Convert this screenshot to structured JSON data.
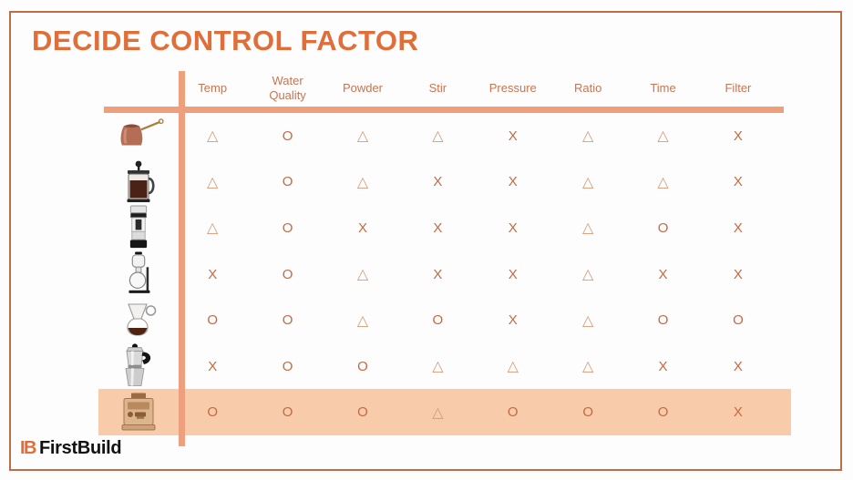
{
  "slide": {
    "title": "DECIDE CONTROL FACTOR"
  },
  "table": {
    "columns": [
      "Temp",
      "Water Quality",
      "Powder",
      "Stir",
      "Pressure",
      "Ratio",
      "Time",
      "Filter"
    ],
    "symbols_seen": [
      "O",
      "△",
      "X"
    ],
    "rows": [
      {
        "device": "turkish-cezve",
        "values": [
          "△",
          "O",
          "△",
          "△",
          "X",
          "△",
          "△",
          "X"
        ],
        "highlighted": false
      },
      {
        "device": "french-press",
        "values": [
          "△",
          "O",
          "△",
          "X",
          "X",
          "△",
          "△",
          "X"
        ],
        "highlighted": false
      },
      {
        "device": "electric-drip-brewer",
        "values": [
          "△",
          "O",
          "X",
          "X",
          "X",
          "△",
          "O",
          "X"
        ],
        "highlighted": false
      },
      {
        "device": "siphon-brewer",
        "values": [
          "X",
          "O",
          "△",
          "X",
          "X",
          "△",
          "X",
          "X"
        ],
        "highlighted": false
      },
      {
        "device": "pour-over-carafe",
        "values": [
          "O",
          "O",
          "△",
          "O",
          "X",
          "△",
          "O",
          "O"
        ],
        "highlighted": false
      },
      {
        "device": "moka-pot",
        "values": [
          "X",
          "O",
          "O",
          "△",
          "△",
          "△",
          "X",
          "X"
        ],
        "highlighted": false
      },
      {
        "device": "espresso-machine",
        "values": [
          "O",
          "O",
          "O",
          "△",
          "O",
          "O",
          "O",
          "X"
        ],
        "highlighted": true
      }
    ]
  },
  "footer": {
    "logo_mark": "IB",
    "logo_text": "FirstBuild"
  },
  "colors": {
    "accent_title": "#df6e38",
    "header_text": "#c97452",
    "grid_lines": "#eda07b",
    "highlight_row": "#f8cbab",
    "symbol": "#c56a43",
    "symbol_triangle": "#d69a78",
    "slide_border": "#be6c4b"
  }
}
